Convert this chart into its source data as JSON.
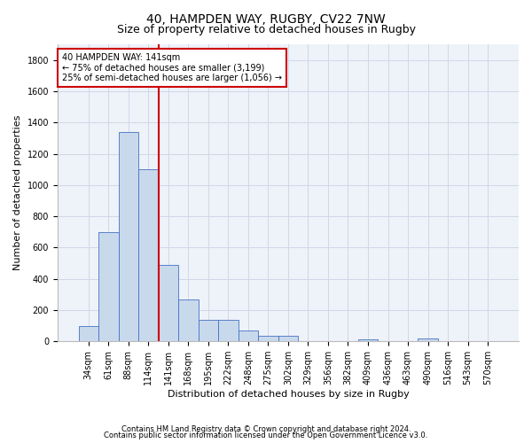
{
  "title_line1": "40, HAMPDEN WAY, RUGBY, CV22 7NW",
  "title_line2": "Size of property relative to detached houses in Rugby",
  "xlabel": "Distribution of detached houses by size in Rugby",
  "ylabel": "Number of detached properties",
  "footnote1": "Contains HM Land Registry data © Crown copyright and database right 2024.",
  "footnote2": "Contains public sector information licensed under the Open Government Licence v3.0.",
  "bar_labels": [
    "34sqm",
    "61sqm",
    "88sqm",
    "114sqm",
    "141sqm",
    "168sqm",
    "195sqm",
    "222sqm",
    "248sqm",
    "275sqm",
    "302sqm",
    "329sqm",
    "356sqm",
    "382sqm",
    "409sqm",
    "436sqm",
    "463sqm",
    "490sqm",
    "516sqm",
    "543sqm",
    "570sqm"
  ],
  "bar_values": [
    100,
    700,
    1340,
    1100,
    490,
    270,
    135,
    135,
    70,
    35,
    35,
    0,
    0,
    0,
    15,
    0,
    0,
    20,
    0,
    0,
    0
  ],
  "bar_color": "#c9d9ec",
  "bar_edge_color": "#4472c4",
  "vline_index": 4,
  "vline_color": "#cc0000",
  "annotation_text": "40 HAMPDEN WAY: 141sqm\n← 75% of detached houses are smaller (3,199)\n25% of semi-detached houses are larger (1,056) →",
  "annotation_box_color": "#cc0000",
  "ylim": [
    0,
    1900
  ],
  "yticks": [
    0,
    200,
    400,
    600,
    800,
    1000,
    1200,
    1400,
    1600,
    1800
  ],
  "grid_color": "#d0d8e8",
  "bg_color": "#eef2f9",
  "title1_fontsize": 10,
  "title2_fontsize": 9,
  "xlabel_fontsize": 8,
  "ylabel_fontsize": 8,
  "tick_fontsize": 7,
  "footnote_fontsize": 6,
  "annot_fontsize": 7
}
